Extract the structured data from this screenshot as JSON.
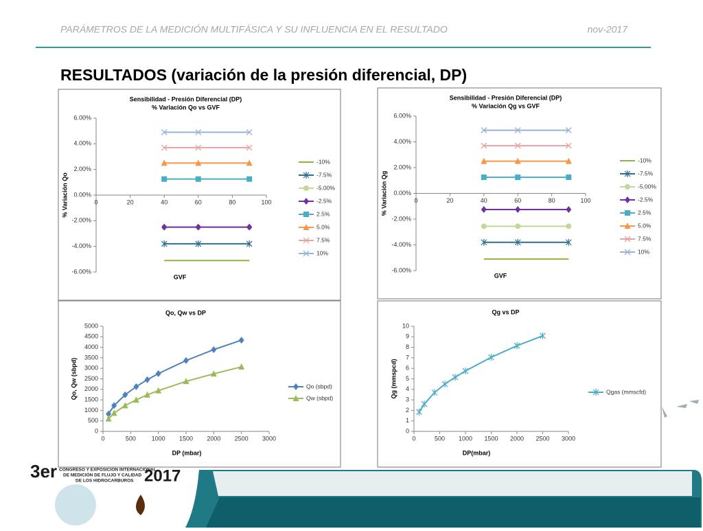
{
  "header": {
    "running_title": "PARÁMETROS DE LA MEDICIÓN MULTIFÁSICA Y SU INFLUENCIA EN EL RESULTADO",
    "date": "nov-2017",
    "title": "RESULTADOS (variación de la presión diferencial, DP)"
  },
  "logo": {
    "edition": "3er",
    "text_1": "CONGRESO Y EXPOSICIÓN INTERNACIONAL",
    "text_2": "DE MEDICIÓN DE FLUJO Y CALIDAD",
    "text_3": "DE LOS HIDROCARBUROS",
    "year": "2017"
  },
  "chart_data": [
    {
      "type": "line",
      "title": "Sensibilidad - Presión Diferencial  (DP)",
      "subtitle": "% Variación Qo vs GVF",
      "x_label": "GVF",
      "y_label": "% Variación Qo",
      "x": [
        40,
        60,
        90
      ],
      "xlim": [
        0,
        100
      ],
      "xticks": [
        0,
        20,
        40,
        60,
        80,
        100
      ],
      "ylim": [
        -6,
        6
      ],
      "yticks": [
        {
          "value": -6,
          "label": "-6.00%"
        },
        {
          "value": -4,
          "label": "-4.00%"
        },
        {
          "value": -2,
          "label": "-2.00%"
        },
        {
          "value": 0,
          "label": "0.00%"
        },
        {
          "value": 2,
          "label": "2.00%"
        },
        {
          "value": 4,
          "label": "4.00%"
        },
        {
          "value": 6,
          "label": "6.00%"
        }
      ],
      "grid": false,
      "legend": "right",
      "series": [
        {
          "name": "-10%",
          "color": "#8cb63c",
          "marker": "none",
          "values": [
            -5.1,
            -5.1,
            -5.1
          ]
        },
        {
          "name": "-7.5%",
          "color": "#2e6f8e",
          "marker": "star",
          "values": [
            -3.8,
            -3.8,
            -3.8
          ]
        },
        {
          "name": "-5.00%",
          "color": "#c3d69b",
          "marker": "circle",
          "values": [
            -2.5,
            -2.5,
            -2.5
          ]
        },
        {
          "name": "-2.5%",
          "color": "#7030a0",
          "marker": "diamond",
          "values": [
            -2.5,
            -2.5,
            -2.5
          ]
        },
        {
          "name": "2.5%",
          "color": "#4bacc6",
          "marker": "square",
          "values": [
            1.25,
            1.25,
            1.25
          ]
        },
        {
          "name": "5.0%",
          "color": "#f79646",
          "marker": "triangle",
          "values": [
            2.5,
            2.5,
            2.5
          ]
        },
        {
          "name": "7.5%",
          "color": "#e6a3a0",
          "marker": "x",
          "values": [
            3.7,
            3.7,
            3.7
          ]
        },
        {
          "name": "10%",
          "color": "#95b3d7",
          "marker": "x",
          "values": [
            4.9,
            4.9,
            4.9
          ]
        }
      ]
    },
    {
      "type": "line",
      "title": "Sensibilidad - Presión Diferencial  (DP)",
      "subtitle": "% Variación Qg vs GVF",
      "x_label": "GVF",
      "y_label": "% Variación Qg",
      "x": [
        40,
        60,
        90
      ],
      "xlim": [
        0,
        100
      ],
      "xticks": [
        0,
        20,
        40,
        60,
        80,
        100
      ],
      "ylim": [
        -6,
        6
      ],
      "yticks": [
        {
          "value": -6,
          "label": "-6.00%"
        },
        {
          "value": -4,
          "label": "-4.00%"
        },
        {
          "value": -2,
          "label": "-2.00%"
        },
        {
          "value": 0,
          "label": "0.00%"
        },
        {
          "value": 2,
          "label": "2.00%"
        },
        {
          "value": 4,
          "label": "4.00%"
        },
        {
          "value": 6,
          "label": "6.00%"
        }
      ],
      "grid": false,
      "legend": "right",
      "series": [
        {
          "name": "-10%",
          "color": "#8cb63c",
          "marker": "none",
          "values": [
            -5.1,
            -5.1,
            -5.1
          ]
        },
        {
          "name": "-7.5%",
          "color": "#2e6f8e",
          "marker": "star",
          "values": [
            -3.8,
            -3.8,
            -3.8
          ]
        },
        {
          "name": "-5.00%",
          "color": "#c3d69b",
          "marker": "circle",
          "values": [
            -2.55,
            -2.55,
            -2.55
          ]
        },
        {
          "name": "-2.5%",
          "color": "#7030a0",
          "marker": "diamond",
          "values": [
            -1.25,
            -1.25,
            -1.25
          ]
        },
        {
          "name": "2.5%",
          "color": "#4bacc6",
          "marker": "square",
          "values": [
            1.25,
            1.25,
            1.25
          ]
        },
        {
          "name": "5.0%",
          "color": "#f79646",
          "marker": "triangle",
          "values": [
            2.5,
            2.5,
            2.5
          ]
        },
        {
          "name": "7.5%",
          "color": "#e6a3a0",
          "marker": "x",
          "values": [
            3.7,
            3.7,
            3.7
          ]
        },
        {
          "name": "10%",
          "color": "#95b3d7",
          "marker": "x",
          "values": [
            4.9,
            4.9,
            4.9
          ]
        }
      ]
    },
    {
      "type": "line",
      "title": "Qo, Qw vs DP",
      "x_label": "DP (mbar)",
      "y_label": "Qo, Qw (sbpd)",
      "x": [
        100,
        200,
        400,
        600,
        800,
        1000,
        1500,
        2000,
        2500
      ],
      "xlim": [
        0,
        3000
      ],
      "xticks": [
        0,
        500,
        1000,
        1500,
        2000,
        2500,
        3000
      ],
      "ylim": [
        0,
        5000
      ],
      "yticks": [
        0,
        500,
        1000,
        1500,
        2000,
        2500,
        3000,
        3500,
        4000,
        4500,
        5000
      ],
      "grid": false,
      "legend": "right",
      "series": [
        {
          "name": "Qo (sbpd)",
          "color": "#4f81bd",
          "marker": "diamond",
          "values": [
            830,
            1230,
            1740,
            2130,
            2460,
            2750,
            3370,
            3890,
            4340
          ]
        },
        {
          "name": "Qw (sbpd)",
          "color": "#9bbb59",
          "marker": "triangle",
          "values": [
            600,
            870,
            1230,
            1500,
            1740,
            1940,
            2380,
            2740,
            3070
          ]
        }
      ]
    },
    {
      "type": "line",
      "title": "Qg vs DP",
      "x_label": "DP(mbar)",
      "y_label": "Qg (mmspcd)",
      "x": [
        100,
        200,
        400,
        600,
        800,
        1000,
        1500,
        2000,
        2500
      ],
      "xlim": [
        0,
        3000
      ],
      "xticks": [
        0,
        500,
        1000,
        1500,
        2000,
        2500,
        3000
      ],
      "ylim": [
        0,
        10
      ],
      "yticks": [
        0,
        1,
        2,
        3,
        4,
        5,
        6,
        7,
        8,
        9,
        10
      ],
      "grid": false,
      "legend": "right",
      "series": [
        {
          "name": "Qgas (mmscfd)",
          "color": "#4bacc6",
          "marker": "star",
          "values": [
            1.85,
            2.6,
            3.7,
            4.5,
            5.15,
            5.75,
            7.05,
            8.15,
            9.1
          ]
        }
      ]
    }
  ]
}
